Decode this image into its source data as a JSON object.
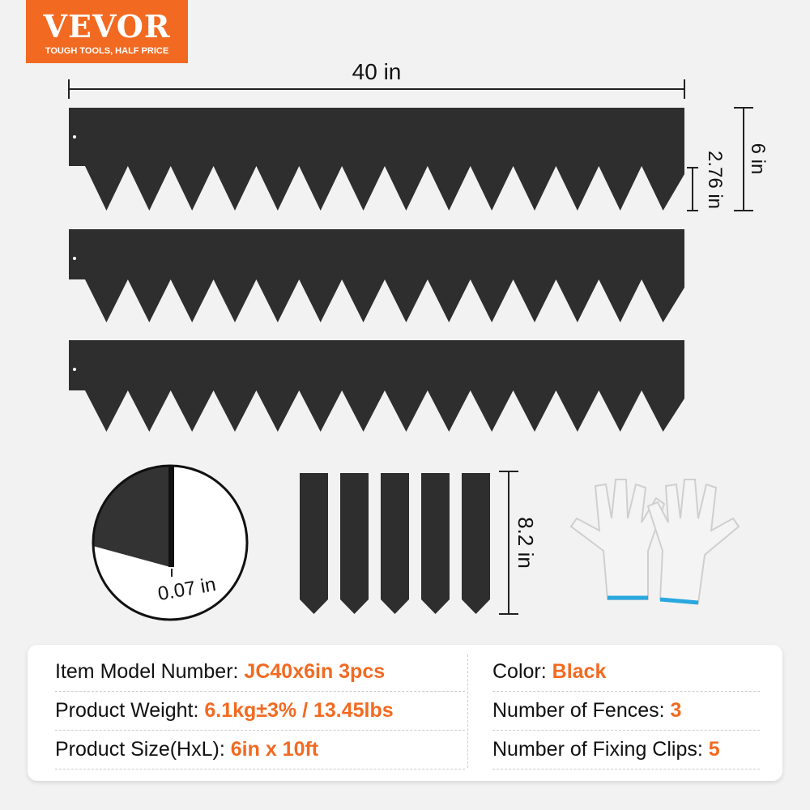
{
  "logo": {
    "brand": "VEVOR",
    "tagline": "TOUGH TOOLS, HALF PRICE",
    "color": "#f26a21"
  },
  "dimensions": {
    "length": "40 in",
    "height": "6 in",
    "spike_height": "2.76 in",
    "thickness": "0.07 in",
    "clip_length": "8.2 in"
  },
  "specs": {
    "left": [
      {
        "label": "Item Model Number: ",
        "value": "JC40x6in 3pcs"
      },
      {
        "label": "Product Weight: ",
        "value": "6.1kg±3% / 13.45lbs"
      },
      {
        "label": "Product Size(HxL): ",
        "value": "6in x 10ft"
      }
    ],
    "right": [
      {
        "label": "Color: ",
        "value": "Black"
      },
      {
        "label": "Number of Fences: ",
        "value": "3"
      },
      {
        "label": "Number of Fixing Clips: ",
        "value": "5"
      }
    ]
  },
  "colors": {
    "accent": "#f26a21",
    "panel": "#2e2e2e"
  }
}
